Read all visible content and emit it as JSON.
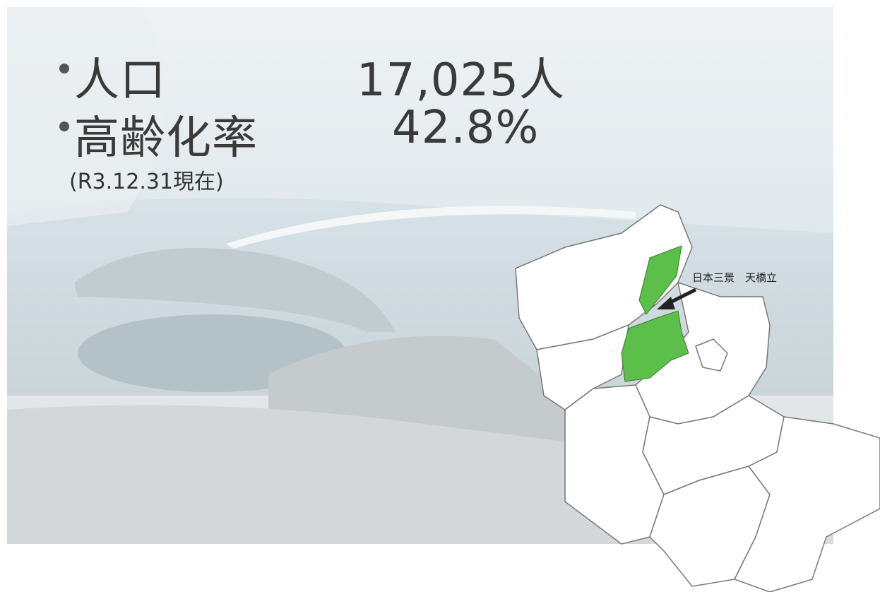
{
  "stats": [
    {
      "label": "人口",
      "value": "17,025人"
    },
    {
      "label": "高齢化率",
      "value": "42.8%"
    }
  ],
  "note": "(R3.12.31現在)",
  "map": {
    "label": "日本三景　天橋立"
  }
}
